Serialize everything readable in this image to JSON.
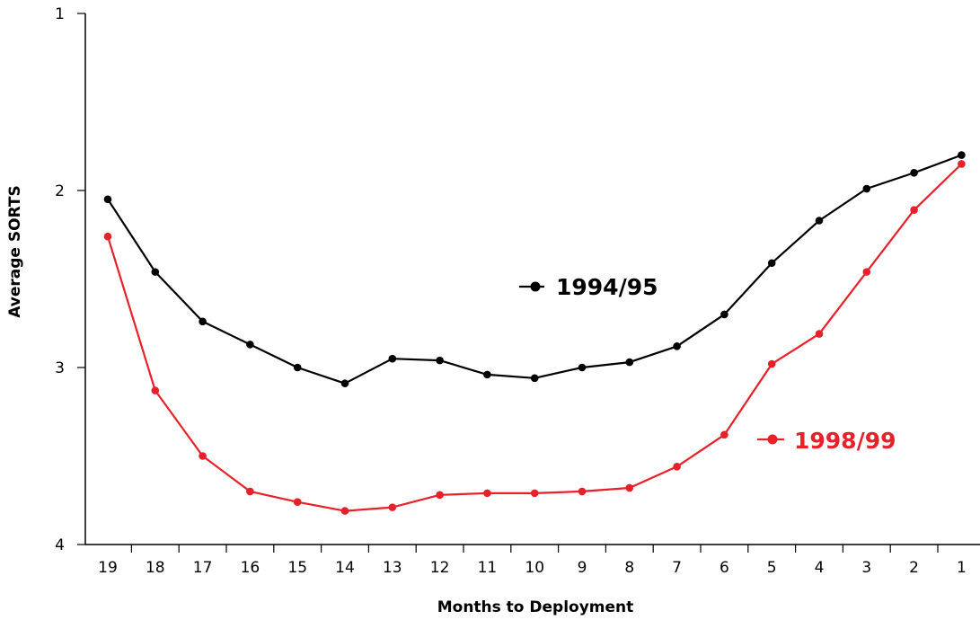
{
  "chart_data": {
    "type": "line",
    "xlabel": "Months to Deployment",
    "ylabel": "Average SORTS",
    "x": [
      19,
      18,
      17,
      16,
      15,
      14,
      13,
      12,
      11,
      10,
      9,
      8,
      7,
      6,
      5,
      4,
      3,
      2,
      1
    ],
    "x_tick_labels": [
      "19",
      "18",
      "17",
      "16",
      "15",
      "14",
      "13",
      "12",
      "11",
      "10",
      "9",
      "8",
      "7",
      "6",
      "5",
      "4",
      "3",
      "2",
      "1"
    ],
    "ylim": [
      1,
      4
    ],
    "y_inverted": true,
    "y_ticks": [
      1,
      2,
      3,
      4
    ],
    "y_tick_labels": [
      "1",
      "2",
      "3",
      "4"
    ],
    "grid": false,
    "legend": "inline labels beside lines",
    "series": [
      {
        "name": "1994/95",
        "color": "#000000",
        "marker": "circle",
        "values": [
          2.05,
          2.46,
          2.74,
          2.87,
          3.0,
          3.09,
          2.95,
          2.96,
          3.04,
          3.06,
          3.0,
          2.97,
          2.88,
          2.7,
          2.41,
          2.17,
          1.99,
          1.9,
          1.8
        ]
      },
      {
        "name": "1998/99",
        "color": "#e8202a",
        "marker": "circle",
        "values": [
          2.26,
          3.13,
          3.5,
          3.7,
          3.76,
          3.81,
          3.79,
          3.72,
          3.71,
          3.71,
          3.7,
          3.68,
          3.56,
          3.38,
          2.98,
          2.81,
          2.46,
          2.11,
          1.85
        ]
      }
    ]
  }
}
